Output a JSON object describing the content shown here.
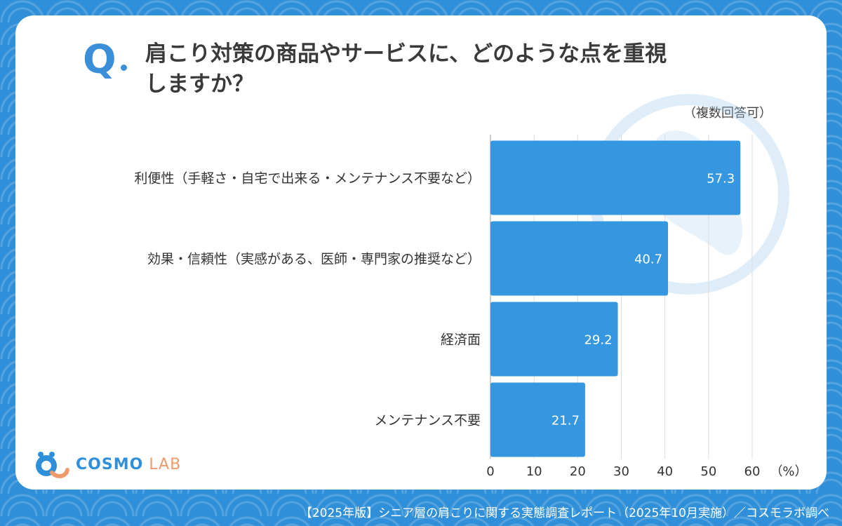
{
  "question": {
    "mark": "Q",
    "title_line1": "肩こり対策の商品やサービスに、どのような点を重視",
    "title_line2": "しますか？",
    "note": "（複数回答可）"
  },
  "chart_data": {
    "type": "bar",
    "orientation": "horizontal",
    "categories": [
      "利便性（手軽さ・自宅で出来る・メンテナンス不要など）",
      "効果・信頼性（実感がある、医師・専門家の推奨など）",
      "経済面",
      "メンテナンス不要"
    ],
    "values": [
      57.3,
      40.7,
      29.2,
      21.7
    ],
    "value_labels": [
      "57.3",
      "40.7",
      "29.2",
      "21.7"
    ],
    "xlim": [
      0,
      60
    ],
    "xticks": [
      "0",
      "10",
      "20",
      "30",
      "40",
      "50",
      "60"
    ],
    "xunit": "（%）",
    "grid": true,
    "bar_color": "#3597e0"
  },
  "logo": {
    "brand": "COSMO",
    "sub": "LAB"
  },
  "footer": {
    "source": "【2025年版】シニア層の肩こりに関する実態調査レポート（2025年10月実施）／コスモラボ調べ"
  },
  "colors": {
    "accent": "#3b8fd9",
    "background": "#2f8fd8",
    "bar": "#3597e0"
  }
}
